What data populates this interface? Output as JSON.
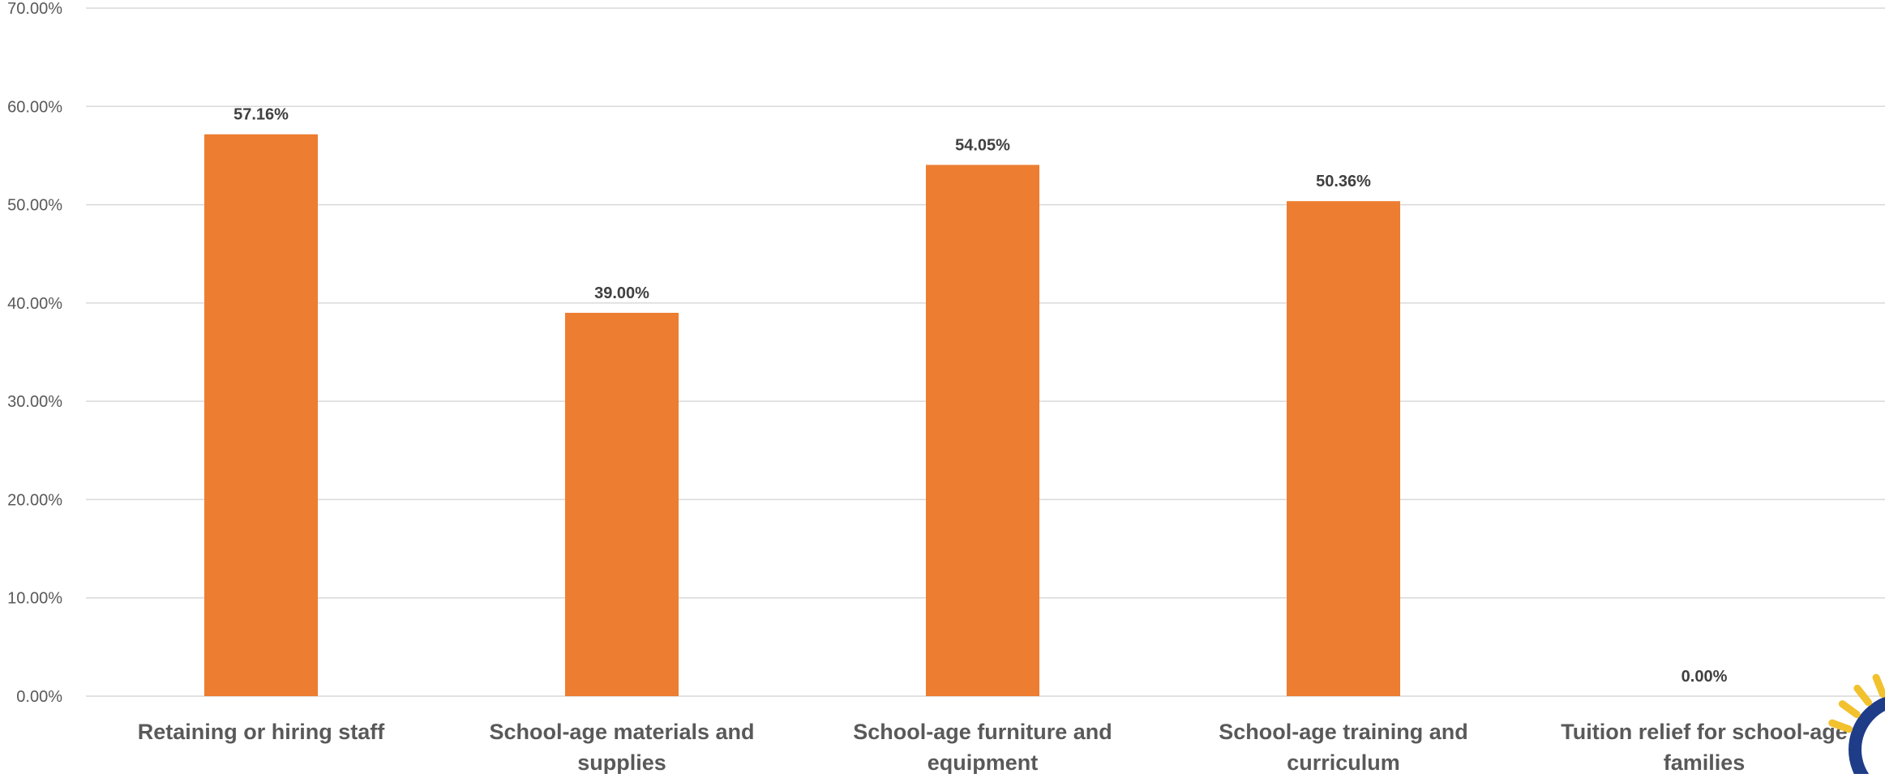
{
  "chart_data": {
    "type": "bar",
    "title": "",
    "xlabel": "",
    "ylabel": "",
    "categories": [
      [
        "Retaining or hiring staff"
      ],
      [
        "School-age materials and",
        "supplies"
      ],
      [
        "School-age furniture and",
        "equipment"
      ],
      [
        "School-age training and",
        "curriculum"
      ],
      [
        "Tuition relief for school-age",
        "families"
      ]
    ],
    "values": [
      57.16,
      39.0,
      54.05,
      50.36,
      0.0
    ],
    "data_labels": [
      "57.16%",
      "39.00%",
      "54.05%",
      "50.36%",
      "0.00%"
    ],
    "ylim": [
      0,
      70
    ],
    "yticks": [
      "0.00%",
      "10.00%",
      "20.00%",
      "30.00%",
      "40.00%",
      "50.00%",
      "60.00%",
      "70.00%"
    ],
    "grid": true,
    "legend": "none",
    "bar_color": "#ED7D31",
    "logo_colors": [
      "#1F3C88",
      "#F2C12E"
    ]
  }
}
